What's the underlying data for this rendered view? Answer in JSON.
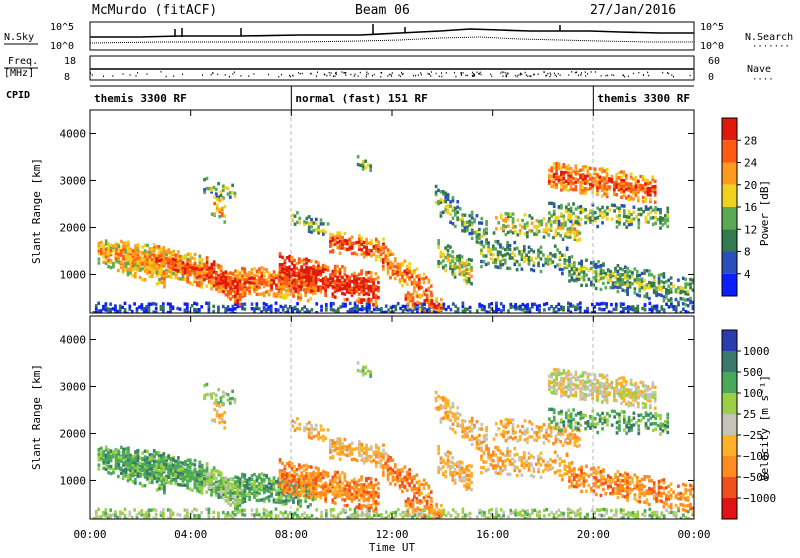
{
  "header": {
    "station": "McMurdo (fitACF)",
    "beam": "Beam 06",
    "date": "27/Jan/2016"
  },
  "top_panels": {
    "nsky_label": "N.Sky",
    "nsearch_label": "N.Search",
    "nsky_ticks": [
      "10^5",
      "10^0"
    ],
    "nsearch_ticks": [
      "10^5",
      "10^0"
    ],
    "freq_label_1": "Freq.",
    "freq_label_2": "[MHz]",
    "freq_ticks": [
      "18",
      "8"
    ],
    "nave_label": "Nave",
    "nave_ticks": [
      "60",
      "0"
    ],
    "cpid_label": "CPID",
    "cpid_segments": [
      {
        "label": "themis 3300 RF",
        "start_h": 0,
        "end_h": 8
      },
      {
        "label": "normal (fast) 151 RF",
        "start_h": 8,
        "end_h": 20
      },
      {
        "label": "themis 3300 RF",
        "start_h": 20,
        "end_h": 24
      }
    ]
  },
  "chart_data": [
    {
      "type": "heatmap",
      "quantity": "Power",
      "ylabel": "Slant Range [km]",
      "ylim": [
        180,
        4500
      ],
      "yticks": [
        "1000",
        "2000",
        "3000",
        "4000"
      ],
      "colorbar": {
        "label": "Power [dB]",
        "ticks": [
          "4",
          "8",
          "12",
          "16",
          "20",
          "24",
          "28"
        ],
        "colors": [
          "#0a1eff",
          "#2950b8",
          "#357a4f",
          "#5aaa55",
          "#f0d21e",
          "#ff9a1e",
          "#ff5a14",
          "#e01a0a"
        ]
      }
    },
    {
      "type": "heatmap",
      "quantity": "Velocity",
      "ylabel": "Slant Range [km]",
      "xlabel": "Time UT",
      "xlim_hours": [
        0,
        24
      ],
      "xticks": [
        "00:00",
        "04:00",
        "08:00",
        "12:00",
        "16:00",
        "20:00",
        "00:00"
      ],
      "ylim": [
        180,
        4500
      ],
      "yticks": [
        "1000",
        "2000",
        "3000",
        "4000"
      ],
      "colorbar": {
        "label": "Velocity [m s⁻¹]",
        "ticks": [
          "1000",
          "500",
          "100",
          "25",
          "−25",
          "−100",
          "−500",
          "−1000"
        ],
        "colors": [
          "#2a3cb0",
          "#3a7a6c",
          "#4aa85a",
          "#9ad046",
          "#c4c4b8",
          "#ffb028",
          "#ff8c1e",
          "#f0501e",
          "#e01414"
        ]
      }
    }
  ]
}
